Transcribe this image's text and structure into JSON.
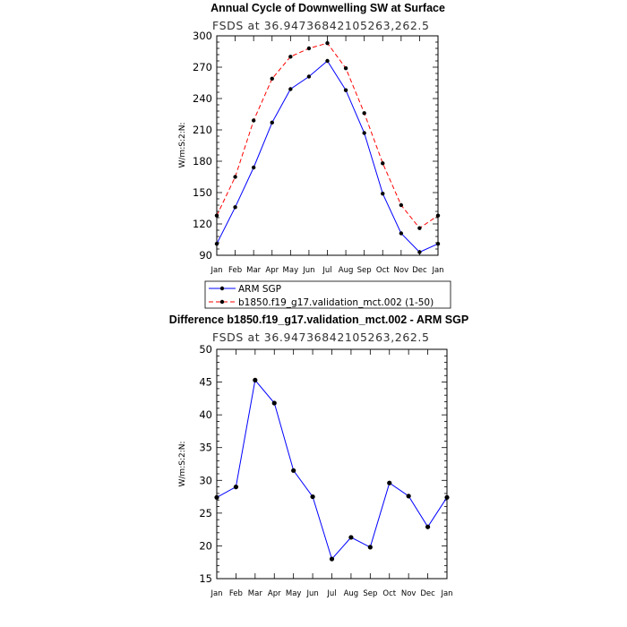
{
  "chart_data": [
    {
      "type": "line",
      "title": "Annual Cycle of Downwelling SW at Surface",
      "subtitle": "FSDS at 36.94736842105263,262.5",
      "ylabel": "W/m:S:2:N:",
      "xlabel": "",
      "categories": [
        "Jan",
        "Feb",
        "Mar",
        "Apr",
        "May",
        "Jun",
        "Jul",
        "Aug",
        "Sep",
        "Oct",
        "Nov",
        "Dec",
        "Jan"
      ],
      "ylim": [
        90,
        300
      ],
      "yticks": [
        90,
        120,
        150,
        180,
        210,
        240,
        270,
        300
      ],
      "series": [
        {
          "name": "ARM SGP",
          "color": "#0000ff",
          "dashed": false,
          "values": [
            101,
            136,
            174,
            217,
            249,
            261,
            276,
            248,
            207,
            149,
            111,
            93,
            101
          ]
        },
        {
          "name": "b1850.f19_g17.validation_mct.002 (1-50)",
          "color": "#ff0000",
          "dashed": true,
          "values": [
            128,
            165,
            219,
            259,
            280,
            288,
            293,
            269,
            226,
            178,
            138,
            116,
            128
          ]
        }
      ],
      "legend": "below"
    },
    {
      "type": "line",
      "title": "Difference b1850.f19_g17.validation_mct.002 - ARM SGP",
      "subtitle": "FSDS at 36.94736842105263,262.5",
      "ylabel": "W/m:S:2:N:",
      "xlabel": "",
      "categories": [
        "Jan",
        "Feb",
        "Mar",
        "Apr",
        "May",
        "Jun",
        "Jul",
        "Aug",
        "Sep",
        "Oct",
        "Nov",
        "Dec",
        "Jan"
      ],
      "ylim": [
        15,
        50
      ],
      "yticks": [
        15,
        20,
        25,
        30,
        35,
        40,
        45,
        50
      ],
      "series": [
        {
          "color": "#0000ff",
          "dashed": false,
          "values": [
            27.4,
            29.0,
            45.3,
            41.8,
            31.5,
            27.5,
            18.0,
            21.3,
            19.8,
            29.6,
            27.6,
            22.9,
            27.4
          ]
        }
      ]
    }
  ]
}
